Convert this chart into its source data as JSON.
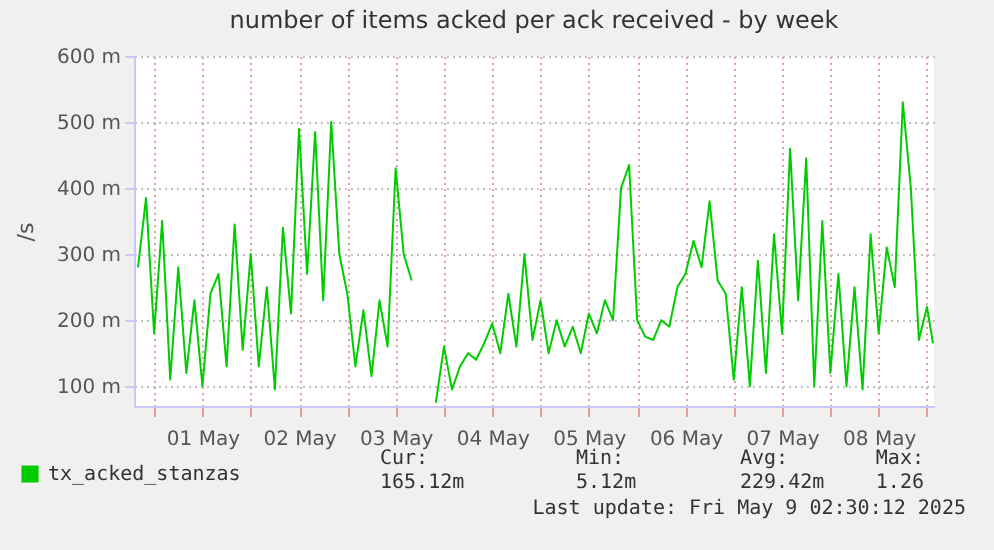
{
  "chart_data": {
    "type": "line",
    "title": "number of items acked per ack received - by week",
    "ylabel": "/s",
    "x": [
      "2025-04-30T20:00",
      "2025-04-30T22:00",
      "2025-05-01T00:00",
      "2025-05-01T02:00",
      "2025-05-01T04:00",
      "2025-05-01T06:00",
      "2025-05-01T08:00",
      "2025-05-01T10:00",
      "2025-05-01T12:00",
      "2025-05-01T14:00",
      "2025-05-01T16:00",
      "2025-05-01T18:00",
      "2025-05-01T20:00",
      "2025-05-01T22:00",
      "2025-05-02T00:00",
      "2025-05-02T02:00",
      "2025-05-02T04:00",
      "2025-05-02T06:00",
      "2025-05-02T08:00",
      "2025-05-02T10:00",
      "2025-05-02T12:00",
      "2025-05-02T14:00",
      "2025-05-02T16:00",
      "2025-05-02T18:00",
      "2025-05-02T20:00",
      "2025-05-02T22:00",
      "2025-05-03T00:00",
      "2025-05-03T02:00",
      "2025-05-03T04:00",
      "2025-05-03T06:00",
      "2025-05-03T08:00",
      "2025-05-03T10:00",
      "2025-05-03T12:00",
      "2025-05-03T14:00",
      "2025-05-03T16:00",
      "2025-05-03T18:00",
      "2025-05-03T20:00",
      "2025-05-03T22:00",
      "2025-05-04T00:00",
      "2025-05-04T02:00",
      "2025-05-04T04:00",
      "2025-05-04T06:00",
      "2025-05-04T08:00",
      "2025-05-04T10:00",
      "2025-05-04T12:00",
      "2025-05-04T14:00",
      "2025-05-04T16:00",
      "2025-05-04T18:00",
      "2025-05-04T20:00",
      "2025-05-04T22:00",
      "2025-05-05T00:00",
      "2025-05-05T02:00",
      "2025-05-05T04:00",
      "2025-05-05T06:00",
      "2025-05-05T08:00",
      "2025-05-05T10:00",
      "2025-05-05T12:00",
      "2025-05-05T14:00",
      "2025-05-05T16:00",
      "2025-05-05T18:00",
      "2025-05-05T20:00",
      "2025-05-05T22:00",
      "2025-05-06T00:00",
      "2025-05-06T02:00",
      "2025-05-06T04:00",
      "2025-05-06T06:00",
      "2025-05-06T08:00",
      "2025-05-06T10:00",
      "2025-05-06T12:00",
      "2025-05-06T14:00",
      "2025-05-06T16:00",
      "2025-05-06T18:00",
      "2025-05-06T20:00",
      "2025-05-06T22:00",
      "2025-05-07T00:00",
      "2025-05-07T02:00",
      "2025-05-07T04:00",
      "2025-05-07T06:00",
      "2025-05-07T08:00",
      "2025-05-07T10:00",
      "2025-05-07T12:00",
      "2025-05-07T14:00",
      "2025-05-07T16:00",
      "2025-05-07T18:00",
      "2025-05-07T20:00",
      "2025-05-07T22:00",
      "2025-05-08T00:00",
      "2025-05-08T02:00",
      "2025-05-08T04:00",
      "2025-05-08T06:00",
      "2025-05-08T08:00",
      "2025-05-08T10:00",
      "2025-05-08T12:00",
      "2025-05-08T14:00",
      "2025-05-08T16:00",
      "2025-05-08T18:00",
      "2025-05-08T20:00",
      "2025-05-08T22:00",
      "2025-05-09T00:00",
      "2025-05-09T01:30"
    ],
    "series": [
      {
        "name": "tx_acked_stanzas",
        "color": "#00cc00",
        "values": [
          280,
          385,
          180,
          350,
          110,
          280,
          120,
          230,
          100,
          240,
          270,
          130,
          345,
          155,
          300,
          130,
          250,
          95,
          340,
          210,
          490,
          270,
          485,
          230,
          500,
          300,
          240,
          130,
          215,
          115,
          230,
          160,
          430,
          300,
          260,
          null,
          null,
          75,
          160,
          95,
          130,
          150,
          140,
          165,
          195,
          150,
          240,
          160,
          300,
          170,
          230,
          150,
          200,
          160,
          190,
          150,
          210,
          180,
          230,
          200,
          400,
          435,
          200,
          175,
          170,
          200,
          190,
          250,
          270,
          320,
          280,
          380,
          260,
          240,
          110,
          250,
          100,
          290,
          120,
          330,
          180,
          460,
          230,
          445,
          100,
          350,
          120,
          270,
          100,
          250,
          95,
          330,
          180,
          310,
          250,
          530,
          400,
          170,
          220,
          165
        ]
      }
    ],
    "xlim": [
      "2025-04-30T19:00",
      "2025-05-09T01:45"
    ],
    "xticks": [
      {
        "value": "2025-05-01T00:00",
        "label": null
      },
      {
        "value": "2025-05-01T12:00",
        "label": "01 May"
      },
      {
        "value": "2025-05-02T00:00",
        "label": null
      },
      {
        "value": "2025-05-02T12:00",
        "label": "02 May"
      },
      {
        "value": "2025-05-03T00:00",
        "label": null
      },
      {
        "value": "2025-05-03T12:00",
        "label": "03 May"
      },
      {
        "value": "2025-05-04T00:00",
        "label": null
      },
      {
        "value": "2025-05-04T12:00",
        "label": "04 May"
      },
      {
        "value": "2025-05-05T00:00",
        "label": null
      },
      {
        "value": "2025-05-05T12:00",
        "label": "05 May"
      },
      {
        "value": "2025-05-06T00:00",
        "label": null
      },
      {
        "value": "2025-05-06T12:00",
        "label": "06 May"
      },
      {
        "value": "2025-05-07T00:00",
        "label": null
      },
      {
        "value": "2025-05-07T12:00",
        "label": "07 May"
      },
      {
        "value": "2025-05-08T00:00",
        "label": null
      },
      {
        "value": "2025-05-08T12:00",
        "label": "08 May"
      },
      {
        "value": "2025-05-09T00:00",
        "label": null
      }
    ],
    "ylim": [
      70,
      600
    ],
    "yticks": [
      {
        "value": 100,
        "label": "100 m"
      },
      {
        "value": 200,
        "label": "200 m"
      },
      {
        "value": 300,
        "label": "300 m"
      },
      {
        "value": 400,
        "label": "400 m"
      },
      {
        "value": 500,
        "label": "500 m"
      },
      {
        "value": 600,
        "label": "600 m"
      }
    ],
    "grid": true,
    "legend": "bottom",
    "marker": "none",
    "line_style": "solid",
    "annotations": [
      "Cur:",
      "Min:",
      "Avg:",
      "Max:",
      "165.12m",
      "5.12m",
      "229.42m",
      "1.26",
      "Last update: Fri May  9 02:30:12 2025"
    ]
  }
}
